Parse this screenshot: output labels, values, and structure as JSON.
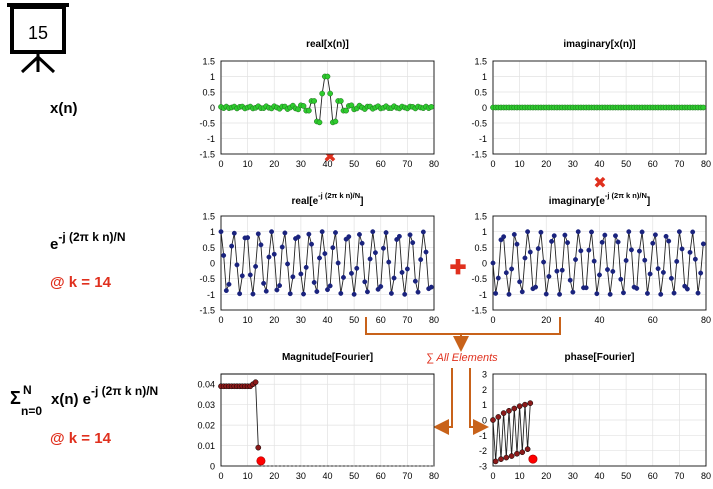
{
  "slide_number": "15",
  "row_labels": {
    "xn": "x(n)",
    "exp_base": "e",
    "exp_sup": "-j (2π k n)/N",
    "k1": "@ k = 14",
    "sum_sigma": "Σ",
    "sum_sup": "N",
    "sum_sub": "n=0",
    "sum_body": "x(n) e",
    "sum_exp": "-j (2π k n)/N",
    "k2": "@ k = 14"
  },
  "sum_note": "∑ All Elements",
  "colors": {
    "accent": "#e0301e",
    "flow": "#c8621a",
    "green": "#2ecc2e",
    "blue": "#1a237e",
    "red_marker": "#ff0000",
    "dark_red": "#8b1a1a"
  },
  "chart_data": [
    {
      "id": "real_x",
      "type": "line",
      "title": "real[x(n)]",
      "xlim": [
        0,
        80
      ],
      "ylim": [
        -1.5,
        1.5
      ],
      "xticks": [
        0,
        10,
        20,
        30,
        40,
        50,
        60,
        70,
        80
      ],
      "yticks": [
        1.5,
        1,
        0.5,
        0,
        -0.5,
        -1,
        -1.5
      ],
      "ytick_labels": [
        "1.5",
        "1",
        "0.5",
        "0",
        "-0.5",
        "-1",
        "-1.5"
      ],
      "marker": "green-circle",
      "x": [
        0,
        1,
        2,
        3,
        4,
        5,
        6,
        7,
        8,
        9,
        10,
        11,
        12,
        13,
        14,
        15,
        16,
        17,
        18,
        19,
        20,
        21,
        22,
        23,
        24,
        25,
        26,
        27,
        28,
        29,
        30,
        31,
        32,
        33,
        34,
        35,
        36,
        37,
        38,
        39,
        40,
        41,
        42,
        43,
        44,
        45,
        46,
        47,
        48,
        49,
        50,
        51,
        52,
        53,
        54,
        55,
        56,
        57,
        58,
        59,
        60,
        61,
        62,
        63,
        64,
        65,
        66,
        67,
        68,
        69,
        70,
        71,
        72,
        73,
        74,
        75,
        76,
        77,
        78,
        79
      ],
      "y": [
        0.02,
        -0.02,
        0.03,
        -0.02,
        0.0,
        0.03,
        -0.03,
        0.02,
        0.03,
        -0.03,
        0.0,
        0.03,
        -0.03,
        -0.01,
        0.04,
        -0.02,
        -0.02,
        0.04,
        -0.01,
        -0.03,
        0.04,
        0.0,
        -0.04,
        0.03,
        0.03,
        -0.05,
        0.0,
        0.06,
        -0.03,
        -0.06,
        0.07,
        0.05,
        -0.1,
        -0.1,
        0.21,
        0.21,
        -0.45,
        -0.48,
        0.45,
        1.0,
        1.0,
        0.45,
        -0.48,
        -0.45,
        0.21,
        0.21,
        -0.1,
        -0.1,
        0.05,
        0.07,
        -0.06,
        -0.03,
        0.06,
        0.0,
        -0.05,
        0.03,
        0.03,
        -0.04,
        0.0,
        0.04,
        -0.03,
        -0.01,
        0.04,
        -0.02,
        -0.02,
        0.04,
        -0.01,
        -0.03,
        0.03,
        0.0,
        -0.03,
        0.03,
        0.02,
        -0.03,
        0.03,
        0.0,
        -0.02,
        0.03,
        -0.02,
        0.02
      ]
    },
    {
      "id": "imag_x",
      "type": "line",
      "title": "imaginary[x(n)]",
      "xlim": [
        0,
        80
      ],
      "ylim": [
        -1.5,
        1.5
      ],
      "xticks": [
        0,
        10,
        20,
        30,
        40,
        50,
        60,
        70,
        80
      ],
      "yticks": [
        1.5,
        1,
        0.5,
        0,
        -0.5,
        -1,
        -1.5
      ],
      "ytick_labels": [
        "1.5",
        "1",
        "0.5",
        "0",
        "-0.5",
        "-1",
        "-1.5"
      ],
      "marker": "green-circle",
      "x": [
        0,
        1,
        2,
        3,
        4,
        5,
        6,
        7,
        8,
        9,
        10,
        11,
        12,
        13,
        14,
        15,
        16,
        17,
        18,
        19,
        20,
        21,
        22,
        23,
        24,
        25,
        26,
        27,
        28,
        29,
        30,
        31,
        32,
        33,
        34,
        35,
        36,
        37,
        38,
        39,
        40,
        41,
        42,
        43,
        44,
        45,
        46,
        47,
        48,
        49,
        50,
        51,
        52,
        53,
        54,
        55,
        56,
        57,
        58,
        59,
        60,
        61,
        62,
        63,
        64,
        65,
        66,
        67,
        68,
        69,
        70,
        71,
        72,
        73,
        74,
        75,
        76,
        77,
        78,
        79
      ],
      "y": [
        0,
        0,
        0,
        0,
        0,
        0,
        0,
        0,
        0,
        0,
        0,
        0,
        0,
        0,
        0,
        0,
        0,
        0,
        0,
        0,
        0,
        0,
        0,
        0,
        0,
        0,
        0,
        0,
        0,
        0,
        0,
        0,
        0,
        0,
        0,
        0,
        0,
        0,
        0,
        0,
        0,
        0,
        0,
        0,
        0,
        0,
        0,
        0,
        0,
        0,
        0,
        0,
        0,
        0,
        0,
        0,
        0,
        0,
        0,
        0,
        0,
        0,
        0,
        0,
        0,
        0,
        0,
        0,
        0,
        0,
        0,
        0,
        0,
        0,
        0,
        0,
        0,
        0,
        0,
        0
      ]
    },
    {
      "id": "real_e",
      "type": "line",
      "title_main": "real[e",
      "title_sup": "-j (2π k n)/N",
      "title_end": "]",
      "xlim": [
        0,
        80
      ],
      "ylim": [
        -1.5,
        1.5
      ],
      "xticks": [
        0,
        10,
        20,
        30,
        40,
        50,
        60,
        70,
        80
      ],
      "yticks": [
        1.5,
        1,
        0.5,
        0,
        -0.5,
        -1,
        -1.5
      ],
      "ytick_labels": [
        "1.5",
        "1",
        "0.5",
        "0",
        "-0.5",
        "-1",
        "-1.5"
      ],
      "marker": "blue-dot",
      "x": [
        0,
        1,
        2,
        3,
        4,
        5,
        6,
        7,
        8,
        9,
        10,
        11,
        12,
        13,
        14,
        15,
        16,
        17,
        18,
        19,
        20,
        21,
        22,
        23,
        24,
        25,
        26,
        27,
        28,
        29,
        30,
        31,
        32,
        33,
        34,
        35,
        36,
        37,
        38,
        39,
        40,
        41,
        42,
        43,
        44,
        45,
        46,
        47,
        48,
        49,
        50,
        51,
        52,
        53,
        54,
        55,
        56,
        57,
        58,
        59,
        60,
        61,
        62,
        63,
        64,
        65,
        66,
        67,
        68,
        69,
        70,
        71,
        72,
        73,
        74,
        75,
        76,
        77,
        78,
        79
      ],
      "y": [
        1.0,
        0.24,
        -0.88,
        -0.68,
        0.54,
        0.95,
        -0.06,
        -0.98,
        -0.41,
        0.8,
        0.81,
        -0.38,
        -0.99,
        -0.11,
        0.93,
        0.58,
        -0.65,
        -0.9,
        0.19,
        1.0,
        0.28,
        -0.86,
        -0.72,
        0.51,
        0.96,
        -0.03,
        -0.98,
        -0.44,
        0.78,
        0.83,
        -0.35,
        -0.99,
        -0.14,
        0.92,
        0.6,
        -0.62,
        -0.91,
        0.16,
        1.0,
        0.3,
        -0.85,
        -0.73,
        0.49,
        0.97,
        0.0,
        -0.97,
        -0.46,
        0.76,
        0.84,
        -0.33,
        -1.0,
        -0.17,
        0.91,
        0.63,
        -0.6,
        -0.92,
        0.13,
        1.0,
        0.33,
        -0.84,
        -0.75,
        0.47,
        0.97,
        0.03,
        -0.97,
        -0.48,
        0.75,
        0.85,
        -0.3,
        -1.0,
        -0.19,
        0.9,
        0.65,
        -0.58,
        -0.93,
        0.11,
        0.99,
        0.35,
        -0.82,
        -0.77
      ]
    },
    {
      "id": "imag_e",
      "type": "line",
      "title_main": "imaginary[e",
      "title_sup": "-j (2π k n)/N",
      "title_end": "]",
      "xlim": [
        0,
        80
      ],
      "ylim": [
        -1.5,
        1.5
      ],
      "xticks": [
        0,
        20,
        40,
        60,
        80
      ],
      "yticks": [
        1.5,
        1,
        0.5,
        0,
        -0.5,
        -1,
        -1.5
      ],
      "ytick_labels": [
        "1.5",
        "1",
        "0.5",
        "0",
        "-0.5",
        "-1",
        "-1.5"
      ],
      "marker": "blue-dot",
      "x": [
        0,
        1,
        2,
        3,
        4,
        5,
        6,
        7,
        8,
        9,
        10,
        11,
        12,
        13,
        14,
        15,
        16,
        17,
        18,
        19,
        20,
        21,
        22,
        23,
        24,
        25,
        26,
        27,
        28,
        29,
        30,
        31,
        32,
        33,
        34,
        35,
        36,
        37,
        38,
        39,
        40,
        41,
        42,
        43,
        44,
        45,
        46,
        47,
        48,
        49,
        50,
        51,
        52,
        53,
        54,
        55,
        56,
        57,
        58,
        59,
        60,
        61,
        62,
        63,
        64,
        65,
        66,
        67,
        68,
        69,
        70,
        71,
        72,
        73,
        74,
        75,
        76,
        77,
        78,
        79
      ],
      "y": [
        0.0,
        -0.97,
        -0.48,
        0.74,
        0.84,
        -0.31,
        -1.0,
        -0.19,
        0.91,
        0.6,
        -0.6,
        -0.92,
        0.16,
        1.0,
        0.35,
        -0.82,
        -0.77,
        0.46,
        0.98,
        0.03,
        -0.99,
        -0.43,
        0.69,
        0.87,
        -0.26,
        -1.0,
        -0.23,
        0.89,
        0.65,
        -0.55,
        -0.93,
        0.11,
        1.0,
        0.39,
        -0.79,
        -0.79,
        0.41,
        0.99,
        0.06,
        -0.98,
        -0.38,
        0.66,
        0.89,
        -0.21,
        -1.0,
        -0.27,
        0.87,
        0.67,
        -0.52,
        -0.95,
        0.08,
        1.0,
        0.42,
        -0.77,
        -0.81,
        0.38,
        0.99,
        0.09,
        -0.97,
        -0.35,
        0.63,
        0.9,
        -0.18,
        -1.0,
        -0.3,
        0.85,
        0.7,
        -0.49,
        -0.96,
        0.05,
        1.0,
        0.45,
        -0.74,
        -0.83,
        0.34,
        0.99,
        0.12,
        -0.96,
        -0.32,
        0.61
      ]
    },
    {
      "id": "magnitude",
      "type": "line",
      "title": "Magnitude[Fourier]",
      "xlim": [
        0,
        80
      ],
      "ylim": [
        0,
        0.045
      ],
      "xticks": [
        0,
        10,
        20,
        30,
        40,
        50,
        60,
        70,
        80
      ],
      "yticks": [
        0.04,
        0.03,
        0.02,
        0.01,
        0
      ],
      "ytick_labels": [
        "0.04",
        "0.03",
        "0.02",
        "0.01",
        "0"
      ],
      "marker": "darkred-circle",
      "x": [
        0,
        1,
        2,
        3,
        4,
        5,
        6,
        7,
        8,
        9,
        10,
        11,
        12,
        13,
        14
      ],
      "y": [
        0.039,
        0.039,
        0.039,
        0.039,
        0.039,
        0.039,
        0.039,
        0.039,
        0.039,
        0.039,
        0.039,
        0.039,
        0.04,
        0.041,
        0.009
      ],
      "highlight": {
        "x": 15,
        "y": 0.0025
      }
    },
    {
      "id": "phase",
      "type": "line",
      "title": "phase[Fourier]",
      "xlim": [
        0,
        80
      ],
      "ylim": [
        -3,
        3
      ],
      "xticks": [
        0,
        10,
        20,
        30,
        40,
        50,
        60,
        70,
        80
      ],
      "yticks": [
        3,
        2,
        1,
        0,
        -1,
        -2,
        -3
      ],
      "ytick_labels": [
        "3",
        "2",
        "1",
        "0",
        "-1",
        "-2",
        "-3"
      ],
      "marker": "darkred-circle",
      "x": [
        0,
        1,
        2,
        3,
        4,
        5,
        6,
        7,
        8,
        9,
        10,
        11,
        12,
        13,
        14
      ],
      "y": [
        0.0,
        -2.7,
        0.2,
        -2.55,
        0.45,
        -2.45,
        0.6,
        -2.35,
        0.75,
        -2.2,
        0.9,
        -2.1,
        1.0,
        -1.9,
        1.1
      ],
      "highlight": {
        "x": 15,
        "y": -2.55
      }
    }
  ]
}
